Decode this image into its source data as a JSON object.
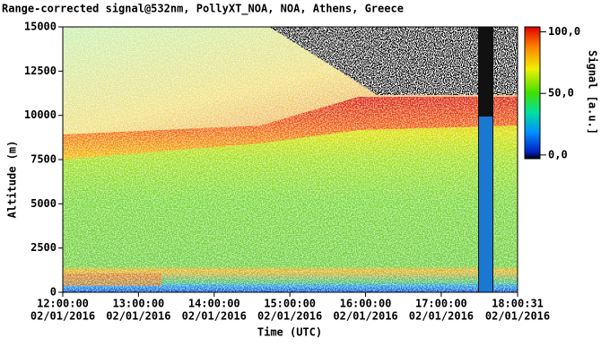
{
  "chart_data": {
    "type": "heatmap",
    "title": "Range-corrected signal@532nm, PollyXT_NOA, NOA, Athens, Greece",
    "xlabel": "Time (UTC)",
    "ylabel": "Altitude (m)",
    "xlim": [
      12,
      18.0086
    ],
    "xticks": [
      {
        "value": 12,
        "label": [
          "12:00:00",
          "02/01/2016"
        ]
      },
      {
        "value": 13,
        "label": [
          "13:00:00",
          "02/01/2016"
        ]
      },
      {
        "value": 14,
        "label": [
          "14:00:00",
          "02/01/2016"
        ]
      },
      {
        "value": 15,
        "label": [
          "15:00:00",
          "02/01/2016"
        ]
      },
      {
        "value": 16,
        "label": [
          "16:00:00",
          "02/01/2016"
        ]
      },
      {
        "value": 17,
        "label": [
          "17:00:00",
          "02/01/2016"
        ]
      },
      {
        "value": 18.0086,
        "label": [
          "18:00:31",
          "02/01/2016"
        ]
      }
    ],
    "ylim": [
      0,
      15000
    ],
    "yticks": [
      0,
      2500,
      5000,
      7500,
      10000,
      12500,
      15000
    ],
    "colorbar": {
      "label": "Signal [a.u.]",
      "lim": [
        -3,
        104
      ],
      "ticks": [
        {
          "value": 0,
          "label": "0,0"
        },
        {
          "value": 50,
          "label": "50,0"
        },
        {
          "value": 100,
          "label": "100,0"
        }
      ]
    }
  }
}
